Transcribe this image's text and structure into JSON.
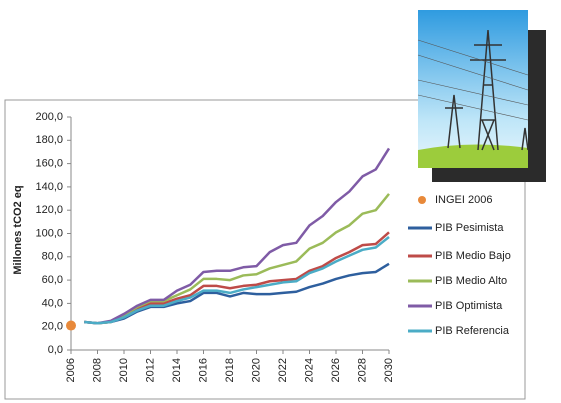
{
  "chart_data": {
    "type": "line",
    "y_label": "Millones tCO2 eq",
    "x": [
      2007,
      2008,
      2009,
      2010,
      2011,
      2012,
      2013,
      2014,
      2015,
      2016,
      2017,
      2018,
      2019,
      2020,
      2021,
      2022,
      2023,
      2024,
      2025,
      2026,
      2027,
      2028,
      2029,
      2030
    ],
    "points": [
      {
        "name": "INGEI 2006",
        "color": "#e8893a",
        "x": [
          2006
        ],
        "values": [
          21
        ]
      }
    ],
    "series": [
      {
        "name": "PIB Pesimista",
        "color": "#2e5f9e",
        "values": [
          24,
          23,
          24,
          27,
          33,
          37,
          37,
          40,
          42,
          49,
          49,
          46,
          49,
          48,
          48,
          49,
          50,
          54,
          57,
          61,
          64,
          66,
          67,
          74
        ]
      },
      {
        "name": "PIB Medio Bajo",
        "color": "#be4b48",
        "values": [
          24,
          23,
          24,
          29,
          35,
          40,
          40,
          44,
          47,
          55,
          55,
          53,
          55,
          56,
          59,
          60,
          61,
          68,
          72,
          79,
          84,
          90,
          91,
          101
        ]
      },
      {
        "name": "PIB Medio Alto",
        "color": "#9bbb59",
        "values": [
          24,
          23,
          24,
          30,
          37,
          42,
          42,
          47,
          52,
          61,
          61,
          60,
          64,
          65,
          70,
          73,
          76,
          87,
          92,
          101,
          107,
          117,
          120,
          134
        ]
      },
      {
        "name": "PIB Optimista",
        "color": "#7f5ba6",
        "values": [
          24,
          23,
          25,
          31,
          38,
          43,
          43,
          51,
          56,
          67,
          68,
          68,
          71,
          72,
          84,
          90,
          92,
          107,
          115,
          127,
          136,
          149,
          155,
          173
        ]
      },
      {
        "name": "PIB Referencia",
        "color": "#4bacc6",
        "values": [
          24,
          23,
          24,
          28,
          34,
          38,
          38,
          42,
          45,
          51,
          51,
          49,
          52,
          54,
          56,
          58,
          59,
          66,
          70,
          76,
          81,
          86,
          88,
          97
        ]
      }
    ],
    "xlim": [
      2006,
      2030
    ],
    "xticks": [
      2006,
      2008,
      2010,
      2012,
      2014,
      2016,
      2018,
      2020,
      2022,
      2024,
      2026,
      2028,
      2030
    ],
    "ylim": [
      0,
      200
    ],
    "yticks": [
      {
        "value": 0,
        "label": "0,0"
      },
      {
        "value": 20,
        "label": "20,0"
      },
      {
        "value": 40,
        "label": "40,0"
      },
      {
        "value": 60,
        "label": "60,0"
      },
      {
        "value": 80,
        "label": "80,0"
      },
      {
        "value": 100,
        "label": "100,0"
      },
      {
        "value": 120,
        "label": "120,0"
      },
      {
        "value": 140,
        "label": "140,0"
      },
      {
        "value": 160,
        "label": "160,0"
      },
      {
        "value": 180,
        "label": "180,0"
      },
      {
        "value": 200,
        "label": "200,0"
      }
    ]
  }
}
